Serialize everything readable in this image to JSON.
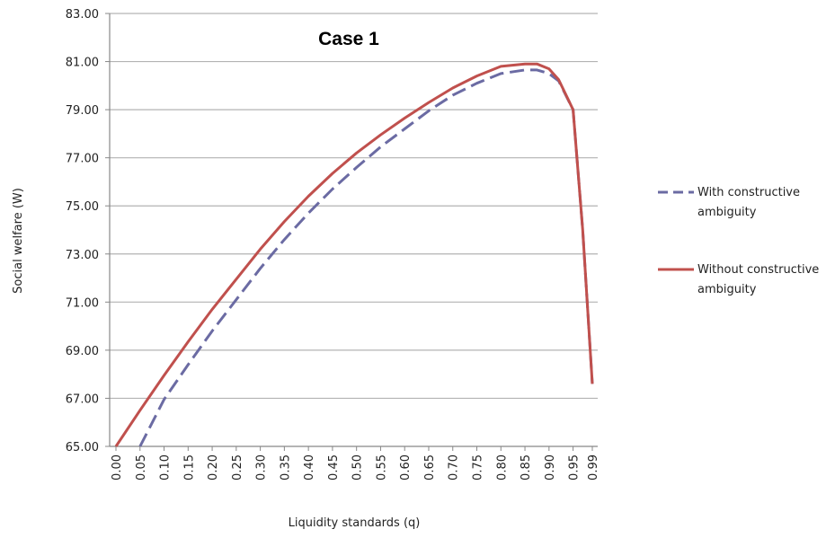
{
  "chart_data": {
    "type": "line",
    "title": "Case 1",
    "xlabel": "Liquidity standards (q)",
    "ylabel": "Social welfare (W)",
    "ylim": [
      65,
      83
    ],
    "yticks": [
      "65.00",
      "67.00",
      "69.00",
      "71.00",
      "73.00",
      "75.00",
      "77.00",
      "79.00",
      "81.00",
      "83.00"
    ],
    "xtick_labels": [
      "0.00",
      "0.05",
      "0.10",
      "0.15",
      "0.20",
      "0.25",
      "0.30",
      "0.35",
      "0.40",
      "0.45",
      "0.50",
      "0.55",
      "0.60",
      "0.65",
      "0.70",
      "0.75",
      "0.80",
      "0.85",
      "0.90",
      "0.95",
      "0.99"
    ],
    "grid": "horizontal",
    "legend_position": "right",
    "series": [
      {
        "name": "With constructive ambiguity",
        "style": "dashed",
        "color": "#6B6BA3",
        "x": [
          0.05,
          0.1,
          0.15,
          0.2,
          0.25,
          0.3,
          0.35,
          0.4,
          0.45,
          0.5,
          0.55,
          0.6,
          0.65,
          0.7,
          0.75,
          0.8,
          0.85,
          0.875,
          0.9,
          0.92,
          0.95,
          0.97,
          0.99
        ],
        "y": [
          65.0,
          66.95,
          68.4,
          69.8,
          71.1,
          72.4,
          73.6,
          74.7,
          75.7,
          76.6,
          77.45,
          78.2,
          78.95,
          79.6,
          80.1,
          80.5,
          80.65,
          80.65,
          80.5,
          80.2,
          79.0,
          74.0,
          67.6
        ]
      },
      {
        "name": "Without constructive ambiguity",
        "style": "solid",
        "color": "#C0504D",
        "x": [
          0.0,
          0.05,
          0.1,
          0.15,
          0.2,
          0.25,
          0.3,
          0.35,
          0.4,
          0.45,
          0.5,
          0.55,
          0.6,
          0.65,
          0.7,
          0.75,
          0.8,
          0.85,
          0.875,
          0.9,
          0.92,
          0.95,
          0.97,
          0.99
        ],
        "y": [
          65.0,
          66.5,
          67.95,
          69.35,
          70.7,
          71.95,
          73.2,
          74.35,
          75.4,
          76.35,
          77.2,
          77.95,
          78.65,
          79.3,
          79.9,
          80.4,
          80.8,
          80.9,
          80.9,
          80.7,
          80.25,
          79.0,
          74.0,
          67.6
        ]
      }
    ],
    "legend_lines": [
      [
        "With constructive",
        "ambiguity"
      ],
      [
        "Without constructive",
        "ambiguity"
      ]
    ]
  }
}
